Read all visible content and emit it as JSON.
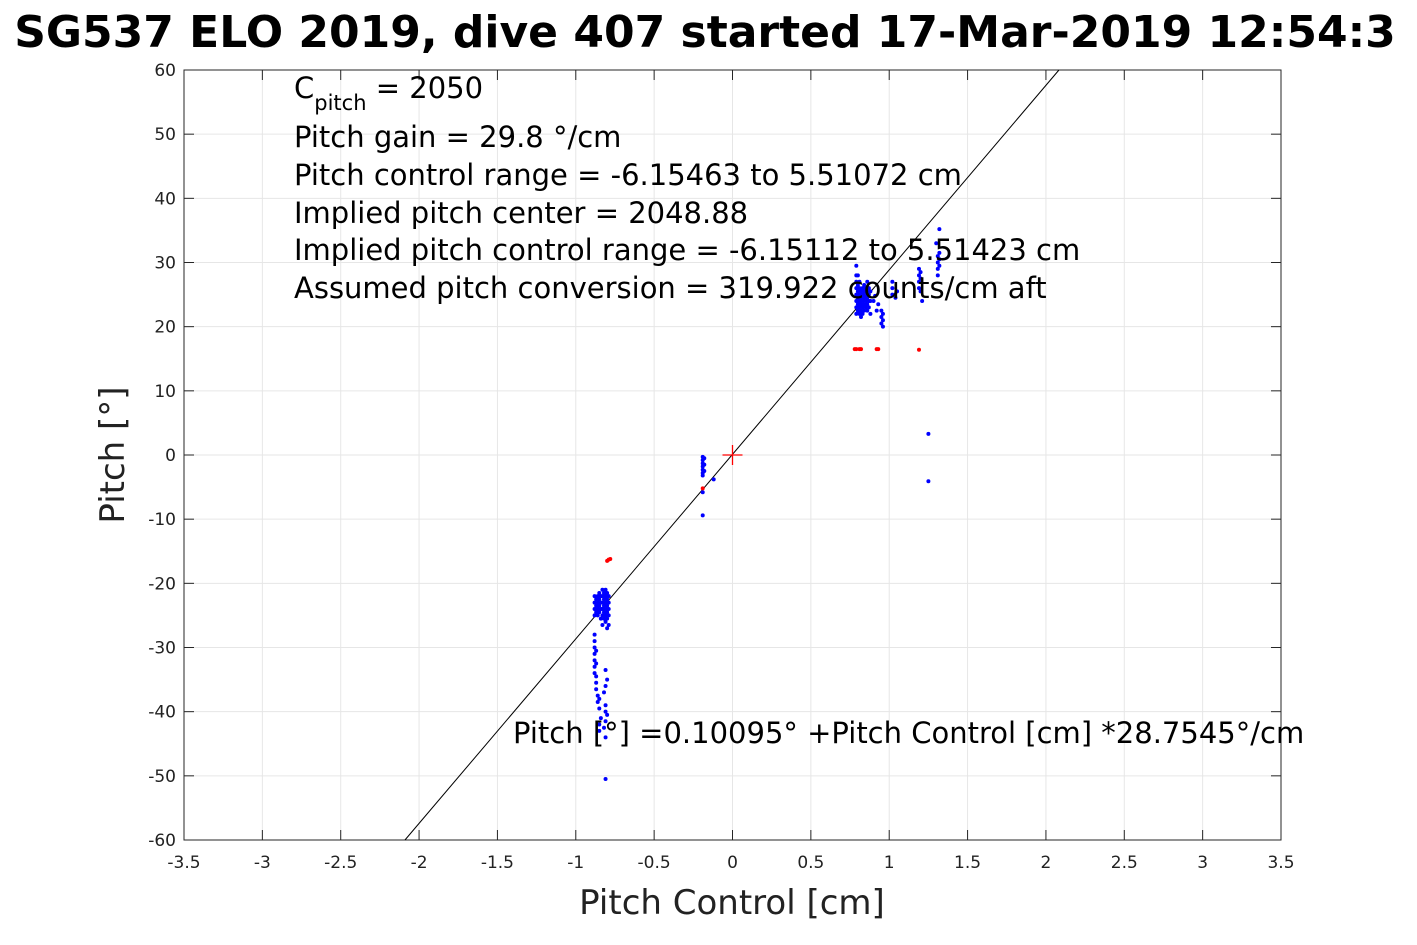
{
  "chart_data": {
    "type": "scatter",
    "title": "SG537 ELO 2019, dive 407 started 17-Mar-2019 12:54:3",
    "xlabel": "Pitch Control [cm]",
    "ylabel": "Pitch [°]",
    "xlim": [
      -3.5,
      3.5
    ],
    "ylim": [
      -60,
      60
    ],
    "xticks": [
      -3.5,
      -3,
      -2.5,
      -2,
      -1.5,
      -1,
      -0.5,
      0,
      0.5,
      1,
      1.5,
      2,
      2.5,
      3,
      3.5
    ],
    "xtick_labels": [
      "-3.5",
      "-3",
      "-2.5",
      "-2",
      "-1.5",
      "-1",
      "-0.5",
      "0",
      "0.5",
      "1",
      "1.5",
      "2",
      "2.5",
      "3",
      "3.5"
    ],
    "yticks": [
      60,
      50,
      40,
      30,
      20,
      10,
      0,
      -10,
      -20,
      -30,
      -40,
      -50,
      -60
    ],
    "ytick_labels": [
      "60",
      "50",
      "40",
      "30",
      "20",
      "10",
      "0",
      "-10",
      "-20",
      "-30",
      "-40",
      "-50",
      "-60"
    ],
    "grid": true,
    "annotations": {
      "cpitch_symbol": "C",
      "cpitch_subscript": "pitch",
      "cpitch_value": " = 2050",
      "lines": [
        "Pitch gain = 29.8 °/cm",
        "Pitch control range = -6.15463 to 5.51072 cm",
        "Implied pitch center = 2048.88",
        "Implied pitch control range = -6.15112 to 5.51423 cm",
        "Assumed pitch conversion = 319.922 counts/cm aft"
      ],
      "fit_equation": "Pitch [°] =0.10095° +Pitch Control [cm] *28.7545°/cm"
    },
    "fit_line": {
      "intercept": 0.10095,
      "slope": 28.7545,
      "color": "#000000"
    },
    "center_marker": {
      "x": 0,
      "y": 0,
      "color": "#ff0000"
    },
    "series": [
      {
        "color": "#0000ff",
        "points": [
          [
            -0.88,
            -22
          ],
          [
            -0.88,
            -23
          ],
          [
            -0.88,
            -24
          ],
          [
            -0.88,
            -25
          ],
          [
            -0.87,
            -22.5
          ],
          [
            -0.87,
            -23.5
          ],
          [
            -0.87,
            -24.5
          ],
          [
            -0.86,
            -22
          ],
          [
            -0.86,
            -23
          ],
          [
            -0.86,
            -24
          ],
          [
            -0.86,
            -25
          ],
          [
            -0.85,
            -21.5
          ],
          [
            -0.85,
            -22.5
          ],
          [
            -0.85,
            -23.5
          ],
          [
            -0.85,
            -24.5
          ],
          [
            -0.84,
            -22
          ],
          [
            -0.84,
            -23
          ],
          [
            -0.84,
            -24
          ],
          [
            -0.84,
            -25.5
          ],
          [
            -0.83,
            -21
          ],
          [
            -0.83,
            -22
          ],
          [
            -0.83,
            -23
          ],
          [
            -0.83,
            -24
          ],
          [
            -0.83,
            -25
          ],
          [
            -0.83,
            -26.5
          ],
          [
            -0.82,
            -21.5
          ],
          [
            -0.82,
            -22.5
          ],
          [
            -0.82,
            -23.5
          ],
          [
            -0.82,
            -24.5
          ],
          [
            -0.82,
            -25.5
          ],
          [
            -0.81,
            -21
          ],
          [
            -0.81,
            -22
          ],
          [
            -0.81,
            -23
          ],
          [
            -0.81,
            -24
          ],
          [
            -0.81,
            -25
          ],
          [
            -0.81,
            -26
          ],
          [
            -0.8,
            -21.5
          ],
          [
            -0.8,
            -22.5
          ],
          [
            -0.8,
            -23.5
          ],
          [
            -0.8,
            -24.5
          ],
          [
            -0.8,
            -25.5
          ],
          [
            -0.8,
            -27
          ],
          [
            -0.79,
            -22
          ],
          [
            -0.79,
            -23
          ],
          [
            -0.79,
            -24
          ],
          [
            -0.79,
            -25
          ],
          [
            -0.79,
            -26.5
          ],
          [
            -0.88,
            -28
          ],
          [
            -0.88,
            -29
          ],
          [
            -0.88,
            -30
          ],
          [
            -0.88,
            -31
          ],
          [
            -0.88,
            -32
          ],
          [
            -0.88,
            -33
          ],
          [
            -0.88,
            -34
          ],
          [
            -0.87,
            -30.5
          ],
          [
            -0.87,
            -32.5
          ],
          [
            -0.87,
            -34.5
          ],
          [
            -0.87,
            -35.5
          ],
          [
            -0.87,
            -36.5
          ],
          [
            -0.86,
            -37.5
          ],
          [
            -0.86,
            -38.5
          ],
          [
            -0.85,
            -38
          ],
          [
            -0.85,
            -39.5
          ],
          [
            -0.85,
            -42
          ],
          [
            -0.85,
            -43
          ],
          [
            -0.84,
            -41
          ],
          [
            -0.81,
            -33.5
          ],
          [
            -0.81,
            -36
          ],
          [
            -0.81,
            -39
          ],
          [
            -0.81,
            -40
          ],
          [
            -0.81,
            -41.5
          ],
          [
            -0.81,
            -44
          ],
          [
            -0.82,
            -37
          ],
          [
            -0.82,
            -42.5
          ],
          [
            -0.8,
            -35
          ],
          [
            -0.8,
            -40.5
          ],
          [
            -0.81,
            -50.5
          ],
          [
            -0.19,
            -0.3
          ],
          [
            -0.19,
            -0.8
          ],
          [
            -0.19,
            -1.3
          ],
          [
            -0.19,
            -1.8
          ],
          [
            -0.19,
            -2.3
          ],
          [
            -0.19,
            -2.8
          ],
          [
            -0.19,
            -3.2
          ],
          [
            -0.18,
            -0.5
          ],
          [
            -0.18,
            -1.5
          ],
          [
            -0.18,
            -2.5
          ],
          [
            -0.19,
            -5.8
          ],
          [
            -0.19,
            -9.4
          ],
          [
            -0.12,
            -3.8
          ],
          [
            0.79,
            22
          ],
          [
            0.79,
            23
          ],
          [
            0.79,
            24
          ],
          [
            0.79,
            25
          ],
          [
            0.79,
            26
          ],
          [
            0.79,
            27
          ],
          [
            0.79,
            28
          ],
          [
            0.79,
            29.5
          ],
          [
            0.8,
            22.5
          ],
          [
            0.8,
            23.5
          ],
          [
            0.8,
            24.5
          ],
          [
            0.8,
            25.5
          ],
          [
            0.8,
            26.5
          ],
          [
            0.8,
            28
          ],
          [
            0.81,
            22
          ],
          [
            0.81,
            23
          ],
          [
            0.81,
            24
          ],
          [
            0.81,
            25
          ],
          [
            0.81,
            26
          ],
          [
            0.81,
            27
          ],
          [
            0.82,
            21.5
          ],
          [
            0.82,
            22.5
          ],
          [
            0.82,
            23.5
          ],
          [
            0.82,
            24.5
          ],
          [
            0.82,
            25.5
          ],
          [
            0.83,
            22
          ],
          [
            0.83,
            23
          ],
          [
            0.83,
            24
          ],
          [
            0.83,
            25
          ],
          [
            0.83,
            26
          ],
          [
            0.84,
            22.5
          ],
          [
            0.84,
            23.5
          ],
          [
            0.84,
            24.5
          ],
          [
            0.84,
            25.5
          ],
          [
            0.84,
            26.5
          ],
          [
            0.85,
            23
          ],
          [
            0.85,
            24
          ],
          [
            0.85,
            25
          ],
          [
            0.85,
            26
          ],
          [
            0.86,
            22.5
          ],
          [
            0.86,
            23.5
          ],
          [
            0.86,
            24.5
          ],
          [
            0.86,
            25.5
          ],
          [
            0.86,
            27
          ],
          [
            0.87,
            23
          ],
          [
            0.87,
            24
          ],
          [
            0.87,
            25
          ],
          [
            0.87,
            26
          ],
          [
            0.88,
            22
          ],
          [
            0.88,
            24
          ],
          [
            0.88,
            25.5
          ],
          [
            0.9,
            24
          ],
          [
            0.91,
            24.8
          ],
          [
            0.92,
            22.5
          ],
          [
            0.93,
            23.5
          ],
          [
            0.95,
            20.5
          ],
          [
            0.95,
            21.5
          ],
          [
            0.95,
            22.5
          ],
          [
            0.96,
            20
          ],
          [
            0.96,
            21
          ],
          [
            0.96,
            22
          ],
          [
            1.02,
            25
          ],
          [
            1.02,
            26
          ],
          [
            1.02,
            27
          ],
          [
            1.04,
            24.5
          ],
          [
            1.05,
            25.5
          ],
          [
            1.19,
            26
          ],
          [
            1.19,
            27
          ],
          [
            1.19,
            28
          ],
          [
            1.19,
            29
          ],
          [
            1.2,
            25.5
          ],
          [
            1.2,
            27.5
          ],
          [
            1.2,
            28.5
          ],
          [
            1.21,
            24
          ],
          [
            1.31,
            28
          ],
          [
            1.31,
            29
          ],
          [
            1.31,
            30
          ],
          [
            1.31,
            31
          ],
          [
            1.32,
            29.5
          ],
          [
            1.32,
            30.5
          ],
          [
            1.32,
            31.5
          ],
          [
            1.32,
            35.2
          ],
          [
            1.3,
            33
          ],
          [
            1.25,
            3.3
          ],
          [
            1.25,
            -4.1
          ]
        ]
      },
      {
        "color": "#ff0000",
        "points": [
          [
            -0.79,
            -16.3
          ],
          [
            -0.8,
            -16.5
          ],
          [
            -0.78,
            -16.2
          ],
          [
            -0.19,
            -5.2
          ],
          [
            0.78,
            16.5
          ],
          [
            0.79,
            16.5
          ],
          [
            0.81,
            16.5
          ],
          [
            0.82,
            16.5
          ],
          [
            0.92,
            16.5
          ],
          [
            0.93,
            16.5
          ],
          [
            1.19,
            16.4
          ]
        ]
      }
    ]
  }
}
